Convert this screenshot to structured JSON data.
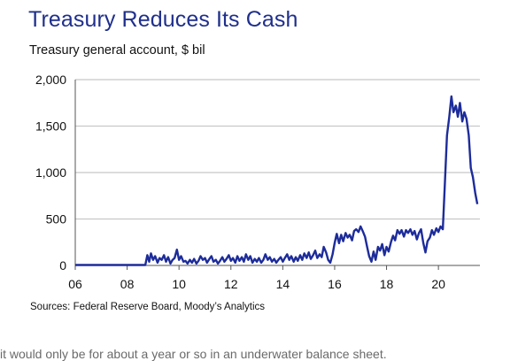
{
  "title": "Treasury Reduces Its Cash",
  "subtitle": "Treasury general account, $ bil",
  "source": "Sources: Federal Reserve Board, Moody’s Analytics",
  "bottom_fragment": "it would only be for about a year or so in an underwater balance sheet.",
  "colors": {
    "title": "#1f2f8c",
    "line": "#1d2c9a",
    "grid": "#c8c8c8",
    "axis": "#555555"
  },
  "chart_data": {
    "type": "line",
    "title": "Treasury Reduces Its Cash",
    "subtitle": "Treasury general account, $ bil",
    "xlabel": "",
    "ylabel": "",
    "xlim": [
      2006,
      2021.6
    ],
    "ylim": [
      0,
      2000
    ],
    "x_ticks": [
      2006,
      2008,
      2010,
      2012,
      2014,
      2016,
      2018,
      2020
    ],
    "x_tick_labels": [
      "06",
      "08",
      "10",
      "12",
      "14",
      "16",
      "18",
      "20"
    ],
    "y_ticks": [
      0,
      500,
      1000,
      1500,
      2000
    ],
    "y_tick_labels": [
      "0",
      "500",
      "1,000",
      "1,500",
      "2,000"
    ],
    "grid": "horizontal",
    "series": [
      {
        "values": [
          [
            2006.0,
            5
          ],
          [
            2006.5,
            5
          ],
          [
            2007.0,
            5
          ],
          [
            2007.5,
            5
          ],
          [
            2008.0,
            5
          ],
          [
            2008.5,
            5
          ],
          [
            2008.7,
            5
          ],
          [
            2008.78,
            110
          ],
          [
            2008.85,
            40
          ],
          [
            2008.92,
            130
          ],
          [
            2009.0,
            60
          ],
          [
            2009.08,
            100
          ],
          [
            2009.17,
            30
          ],
          [
            2009.25,
            80
          ],
          [
            2009.33,
            60
          ],
          [
            2009.42,
            110
          ],
          [
            2009.5,
            40
          ],
          [
            2009.58,
            90
          ],
          [
            2009.67,
            20
          ],
          [
            2009.75,
            60
          ],
          [
            2009.83,
            80
          ],
          [
            2009.92,
            170
          ],
          [
            2010.0,
            60
          ],
          [
            2010.08,
            100
          ],
          [
            2010.17,
            40
          ],
          [
            2010.25,
            50
          ],
          [
            2010.33,
            20
          ],
          [
            2010.42,
            60
          ],
          [
            2010.5,
            30
          ],
          [
            2010.58,
            70
          ],
          [
            2010.67,
            20
          ],
          [
            2010.75,
            50
          ],
          [
            2010.83,
            100
          ],
          [
            2010.92,
            60
          ],
          [
            2011.0,
            80
          ],
          [
            2011.08,
            30
          ],
          [
            2011.17,
            70
          ],
          [
            2011.25,
            100
          ],
          [
            2011.33,
            40
          ],
          [
            2011.42,
            60
          ],
          [
            2011.5,
            20
          ],
          [
            2011.58,
            50
          ],
          [
            2011.67,
            90
          ],
          [
            2011.75,
            40
          ],
          [
            2011.83,
            70
          ],
          [
            2011.92,
            110
          ],
          [
            2012.0,
            50
          ],
          [
            2012.08,
            80
          ],
          [
            2012.17,
            30
          ],
          [
            2012.25,
            100
          ],
          [
            2012.33,
            50
          ],
          [
            2012.42,
            90
          ],
          [
            2012.5,
            40
          ],
          [
            2012.58,
            120
          ],
          [
            2012.67,
            60
          ],
          [
            2012.75,
            100
          ],
          [
            2012.83,
            30
          ],
          [
            2012.92,
            70
          ],
          [
            2013.0,
            40
          ],
          [
            2013.08,
            80
          ],
          [
            2013.17,
            30
          ],
          [
            2013.25,
            60
          ],
          [
            2013.33,
            120
          ],
          [
            2013.42,
            60
          ],
          [
            2013.5,
            90
          ],
          [
            2013.58,
            40
          ],
          [
            2013.67,
            70
          ],
          [
            2013.75,
            30
          ],
          [
            2013.83,
            60
          ],
          [
            2013.92,
            90
          ],
          [
            2014.0,
            40
          ],
          [
            2014.08,
            80
          ],
          [
            2014.17,
            120
          ],
          [
            2014.25,
            60
          ],
          [
            2014.33,
            100
          ],
          [
            2014.42,
            40
          ],
          [
            2014.5,
            90
          ],
          [
            2014.58,
            50
          ],
          [
            2014.67,
            110
          ],
          [
            2014.75,
            60
          ],
          [
            2014.83,
            130
          ],
          [
            2014.92,
            80
          ],
          [
            2015.0,
            140
          ],
          [
            2015.08,
            70
          ],
          [
            2015.17,
            110
          ],
          [
            2015.25,
            160
          ],
          [
            2015.33,
            80
          ],
          [
            2015.42,
            120
          ],
          [
            2015.5,
            90
          ],
          [
            2015.58,
            200
          ],
          [
            2015.67,
            140
          ],
          [
            2015.75,
            60
          ],
          [
            2015.83,
            30
          ],
          [
            2015.92,
            120
          ],
          [
            2016.0,
            240
          ],
          [
            2016.08,
            340
          ],
          [
            2016.17,
            240
          ],
          [
            2016.25,
            330
          ],
          [
            2016.33,
            260
          ],
          [
            2016.42,
            350
          ],
          [
            2016.5,
            300
          ],
          [
            2016.58,
            330
          ],
          [
            2016.67,
            270
          ],
          [
            2016.75,
            370
          ],
          [
            2016.83,
            390
          ],
          [
            2016.92,
            360
          ],
          [
            2017.0,
            420
          ],
          [
            2017.08,
            370
          ],
          [
            2017.17,
            310
          ],
          [
            2017.25,
            200
          ],
          [
            2017.33,
            100
          ],
          [
            2017.42,
            40
          ],
          [
            2017.5,
            150
          ],
          [
            2017.58,
            60
          ],
          [
            2017.67,
            200
          ],
          [
            2017.75,
            160
          ],
          [
            2017.83,
            230
          ],
          [
            2017.92,
            110
          ],
          [
            2018.0,
            200
          ],
          [
            2018.08,
            150
          ],
          [
            2018.17,
            250
          ],
          [
            2018.25,
            320
          ],
          [
            2018.33,
            270
          ],
          [
            2018.42,
            380
          ],
          [
            2018.5,
            340
          ],
          [
            2018.58,
            380
          ],
          [
            2018.67,
            310
          ],
          [
            2018.75,
            380
          ],
          [
            2018.83,
            350
          ],
          [
            2018.92,
            390
          ],
          [
            2019.0,
            330
          ],
          [
            2019.08,
            370
          ],
          [
            2019.17,
            280
          ],
          [
            2019.25,
            350
          ],
          [
            2019.33,
            390
          ],
          [
            2019.42,
            240
          ],
          [
            2019.5,
            140
          ],
          [
            2019.58,
            260
          ],
          [
            2019.67,
            300
          ],
          [
            2019.75,
            380
          ],
          [
            2019.83,
            330
          ],
          [
            2019.92,
            400
          ],
          [
            2020.0,
            360
          ],
          [
            2020.08,
            420
          ],
          [
            2020.17,
            390
          ],
          [
            2020.25,
            900
          ],
          [
            2020.33,
            1400
          ],
          [
            2020.42,
            1600
          ],
          [
            2020.5,
            1820
          ],
          [
            2020.58,
            1650
          ],
          [
            2020.67,
            1720
          ],
          [
            2020.75,
            1600
          ],
          [
            2020.83,
            1750
          ],
          [
            2020.92,
            1550
          ],
          [
            2021.0,
            1650
          ],
          [
            2021.08,
            1580
          ],
          [
            2021.17,
            1400
          ],
          [
            2021.25,
            1050
          ],
          [
            2021.33,
            950
          ],
          [
            2021.42,
            780
          ],
          [
            2021.5,
            660
          ]
        ]
      }
    ]
  }
}
